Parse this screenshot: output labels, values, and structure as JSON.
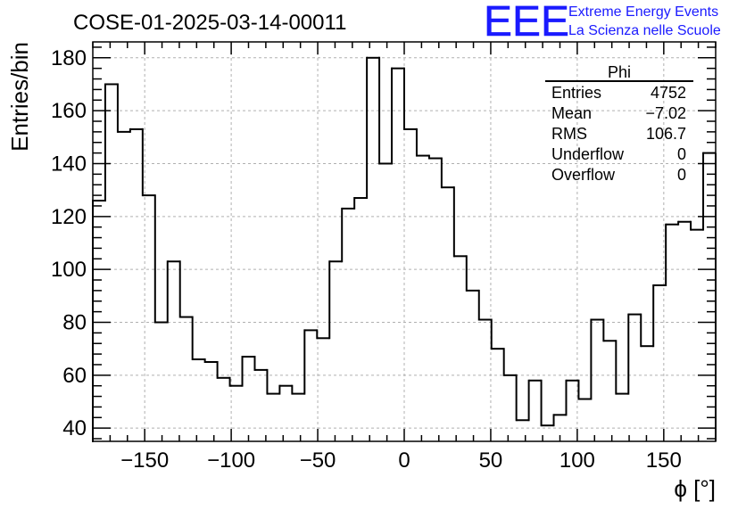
{
  "header": {
    "title": "COSE-01-2025-03-14-00011",
    "logo_text": "EEE",
    "logo_line1": "Extreme Energy Events",
    "logo_line2": "La Scienza nelle Scuole",
    "logo_color": "#1a1aff"
  },
  "stats": {
    "title": "Phi",
    "rows": [
      {
        "label": "Entries",
        "value": "4752"
      },
      {
        "label": "Mean",
        "value": "−7.02"
      },
      {
        "label": "RMS",
        "value": "106.7"
      },
      {
        "label": "Underflow",
        "value": "0"
      },
      {
        "label": "Overflow",
        "value": "0"
      }
    ]
  },
  "chart_data": {
    "type": "histogram",
    "title": "COSE-01-2025-03-14-00011",
    "xlabel": "ϕ [°]",
    "ylabel": "Entries/bin",
    "xlim": [
      -180,
      180
    ],
    "ylim": [
      35,
      186
    ],
    "bin_width": 7.2,
    "x_ticks": [
      -150,
      -100,
      -50,
      0,
      50,
      100,
      150
    ],
    "x_tick_labels": [
      "−150",
      "−100",
      "−50",
      "0",
      "50",
      "100",
      "150"
    ],
    "y_ticks": [
      40,
      60,
      80,
      100,
      120,
      140,
      160,
      180
    ],
    "y_tick_labels": [
      "40",
      "60",
      "80",
      "100",
      "120",
      "140",
      "160",
      "180"
    ],
    "grid": true,
    "legend": "top-right",
    "values": [
      126,
      170,
      152,
      153,
      128,
      80,
      103,
      82,
      66,
      65,
      59,
      56,
      67,
      62,
      53,
      56,
      53,
      77,
      74,
      103,
      123,
      127,
      180,
      140,
      176,
      153,
      143,
      142,
      131,
      105,
      92,
      81,
      70,
      60,
      43,
      58,
      41,
      45,
      58,
      51,
      81,
      73,
      53,
      83,
      71,
      94,
      117,
      118,
      115,
      144
    ]
  }
}
